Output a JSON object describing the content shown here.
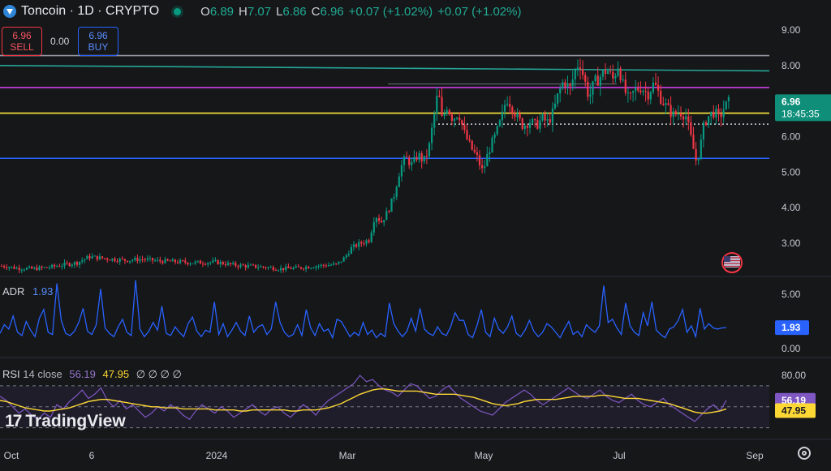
{
  "header": {
    "symbol": "Toncoin · 1D · CRYPTO",
    "open_label": "O",
    "open": "6.89",
    "high_label": "H",
    "high": "7.07",
    "low_label": "L",
    "low": "6.86",
    "close_label": "C",
    "close": "6.96",
    "change": "+0.07 (+1.02%)",
    "change2": "+0.07 (+1.02%)"
  },
  "trade": {
    "sell_price": "6.96",
    "sell_label": "SELL",
    "spread": "0.00",
    "buy_price": "6.96",
    "buy_label": "BUY"
  },
  "adr_label": {
    "name": "ADR",
    "value": "1.93"
  },
  "rsi_label": {
    "name": "RSI",
    "params": "14 close",
    "value": "56.19",
    "ma_value": "47.95",
    "extra": "∅ ∅ ∅ ∅"
  },
  "watermark": {
    "text": "TradingView"
  },
  "colors": {
    "up": "#089981",
    "down": "#f23645",
    "adr": "#2962ff",
    "rsi": "#7e57c2",
    "rsi_ma": "#fdd835"
  },
  "icons": {
    "settings": "gear-icon",
    "flag": "us-flag-icon"
  },
  "chart_data": [
    {
      "type": "candlestick",
      "title": "Toncoin · 1D · CRYPTO",
      "x_ticks": [
        "Oct",
        "6",
        "2024",
        "Mar",
        "May",
        "Jul",
        "Sep"
      ],
      "y_ticks": [
        "9.00",
        "8.00",
        "7.00",
        "6.00",
        "5.00",
        "4.00",
        "3.00"
      ],
      "ylim": [
        2.2,
        9.3
      ],
      "last_price": "6.96",
      "countdown": "18:45:35",
      "horizontal_lines": [
        {
          "value": 8.28,
          "color": "#9598a1"
        },
        {
          "value": 8.0,
          "value_end": 7.85,
          "color": "#26a69a"
        },
        {
          "value": 7.38,
          "color": "#e040fb"
        },
        {
          "value": 6.66,
          "color": "#ffeb3b"
        },
        {
          "value": 6.35,
          "color": "#d1d4dc",
          "style": "dotted"
        },
        {
          "value": 5.39,
          "color": "#2962ff"
        }
      ],
      "close_path": [
        [
          0,
          2.36
        ],
        [
          8,
          2.35
        ],
        [
          20,
          2.3
        ],
        [
          40,
          2.28
        ],
        [
          60,
          2.32
        ],
        [
          80,
          2.4
        ],
        [
          95,
          2.45
        ],
        [
          110,
          2.62
        ],
        [
          125,
          2.58
        ],
        [
          140,
          2.55
        ],
        [
          155,
          2.52
        ],
        [
          175,
          2.55
        ],
        [
          195,
          2.5
        ],
        [
          215,
          2.48
        ],
        [
          240,
          2.45
        ],
        [
          265,
          2.47
        ],
        [
          290,
          2.38
        ],
        [
          310,
          2.35
        ],
        [
          330,
          2.32
        ],
        [
          345,
          2.28
        ],
        [
          365,
          2.3
        ],
        [
          385,
          2.35
        ],
        [
          400,
          2.38
        ],
        [
          415,
          2.4
        ],
        [
          425,
          2.6
        ],
        [
          432,
          2.85
        ],
        [
          440,
          2.95
        ],
        [
          455,
          3.1
        ],
        [
          462,
          3.8
        ],
        [
          470,
          3.6
        ],
        [
          478,
          3.9
        ],
        [
          485,
          4.3
        ],
        [
          493,
          5.1
        ],
        [
          500,
          5.4
        ],
        [
          508,
          5.2
        ],
        [
          515,
          5.5
        ],
        [
          522,
          5.3
        ],
        [
          528,
          5.6
        ],
        [
          535,
          6.6
        ],
        [
          540,
          7.3
        ],
        [
          545,
          6.4
        ],
        [
          550,
          6.9
        ],
        [
          558,
          6.5
        ],
        [
          565,
          6.7
        ],
        [
          572,
          6.1
        ],
        [
          580,
          5.7
        ],
        [
          588,
          5.4
        ],
        [
          595,
          5.0
        ],
        [
          602,
          5.6
        ],
        [
          610,
          6.0
        ],
        [
          618,
          6.5
        ],
        [
          624,
          7.1
        ],
        [
          630,
          6.9
        ],
        [
          638,
          6.5
        ],
        [
          645,
          6.3
        ],
        [
          652,
          6.45
        ],
        [
          660,
          6.3
        ],
        [
          668,
          6.5
        ],
        [
          675,
          6.4
        ],
        [
          682,
          6.7
        ],
        [
          688,
          7.2
        ],
        [
          695,
          7.6
        ],
        [
          702,
          7.3
        ],
        [
          708,
          7.8
        ],
        [
          714,
          8.15
        ],
        [
          720,
          7.6
        ],
        [
          726,
          7.1
        ],
        [
          732,
          7.5
        ],
        [
          740,
          7.7
        ],
        [
          748,
          7.9
        ],
        [
          755,
          7.6
        ],
        [
          762,
          8.05
        ],
        [
          768,
          7.4
        ],
        [
          775,
          7.0
        ],
        [
          782,
          7.3
        ],
        [
          790,
          7.4
        ],
        [
          798,
          7.2
        ],
        [
          806,
          7.5
        ],
        [
          814,
          7.1
        ],
        [
          822,
          6.8
        ],
        [
          830,
          6.6
        ],
        [
          838,
          6.7
        ],
        [
          845,
          6.6
        ],
        [
          852,
          5.9
        ],
        [
          858,
          5.3
        ],
        [
          862,
          5.6
        ],
        [
          868,
          6.4
        ],
        [
          874,
          6.6
        ],
        [
          880,
          6.7
        ],
        [
          886,
          6.5
        ],
        [
          892,
          6.8
        ],
        [
          898,
          6.96
        ]
      ]
    },
    {
      "type": "line",
      "title": "ADR",
      "y_ticks": [
        "5.00",
        "0.00"
      ],
      "ylim": [
        -0.4,
        6.3
      ],
      "last_value": "1.93",
      "series": [
        {
          "values": [
            1.4,
            2.2,
            1.8,
            3.0,
            1.5,
            1.2,
            2.5,
            1.7,
            1.1,
            2.8,
            3.6,
            1.5,
            1.3,
            6.0,
            2.6,
            1.4,
            1.2,
            1.6,
            2.4,
            3.7,
            1.6,
            1.3,
            2.2,
            5.5,
            1.9,
            1.4,
            1.1,
            2.0,
            2.7,
            1.5,
            1.2,
            6.3,
            1.8,
            1.1,
            1.6,
            2.4,
            1.7,
            3.9,
            1.4,
            1.2,
            2.0,
            1.5,
            1.1,
            2.3,
            2.9,
            1.6,
            1.1,
            1.7,
            1.5,
            4.3,
            1.3,
            2.3,
            1.1,
            1.7,
            2.4,
            1.6,
            1.2,
            3.0,
            1.5,
            2.0,
            2.2,
            1.3,
            1.8,
            4.3,
            2.4,
            1.5,
            1.1,
            1.3,
            2.2,
            1.2,
            3.6,
            1.9,
            1.2,
            2.3,
            1.6,
            1.8,
            1.0,
            2.7,
            2.5,
            1.8,
            1.1,
            1.5,
            1.2,
            2.4,
            1.3,
            1.7,
            1.0,
            1.4,
            1.1,
            4.2,
            2.3,
            1.6,
            1.1,
            1.6,
            2.8,
            1.6,
            3.7,
            1.8,
            1.4,
            1.2,
            2.0,
            1.4,
            1.2,
            2.0,
            3.3,
            2.6,
            2.6,
            1.3,
            1.0,
            2.1,
            3.6,
            1.5,
            1.1,
            2.8,
            1.8,
            1.4,
            2.0,
            3.0,
            1.4,
            1.1,
            1.7,
            2.6,
            1.6,
            1.1,
            1.5,
            2.3,
            2.0,
            1.5,
            1.0,
            1.8,
            2.5,
            1.3,
            1.6,
            1.1,
            2.2,
            1.8,
            1.5,
            2.1,
            5.8,
            2.4,
            2.7,
            1.9,
            1.3,
            4.2,
            2.1,
            1.5,
            1.2,
            3.3,
            2.1,
            4.3,
            1.7,
            1.3,
            1.0,
            1.8,
            2.0,
            2.6,
            3.6,
            1.5,
            2.1,
            1.1,
            3.7,
            1.8,
            2.3,
            1.9,
            1.8,
            1.9,
            1.93
          ]
        }
      ]
    },
    {
      "type": "line",
      "title": "RSI 14 close",
      "y_ticks": [
        "80.00"
      ],
      "ylim": [
        20,
        88
      ],
      "bands": [
        70,
        50,
        30
      ],
      "series": [
        {
          "name": "RSI",
          "value_label": "56.19",
          "values": [
            60,
            56,
            50,
            44,
            48,
            42,
            38,
            44,
            40,
            52,
            48,
            55,
            60,
            66,
            58,
            62,
            68,
            56,
            50,
            56,
            48,
            52,
            46,
            40,
            44,
            50,
            46,
            52,
            48,
            42,
            38,
            46,
            52,
            48,
            44,
            50,
            46,
            40,
            44,
            48,
            52,
            46,
            42,
            48,
            50,
            44,
            40,
            46,
            52,
            48,
            42,
            50,
            56,
            60,
            64,
            68,
            72,
            80,
            74,
            76,
            70,
            66,
            64,
            60,
            66,
            72,
            70,
            64,
            58,
            60,
            66,
            70,
            64,
            58,
            54,
            50,
            46,
            44,
            42,
            48,
            54,
            58,
            62,
            66,
            62,
            56,
            52,
            56,
            60,
            64,
            68,
            64,
            60,
            58,
            62,
            66,
            60,
            56,
            54,
            58,
            62,
            56,
            52,
            50,
            54,
            58,
            52,
            48,
            44,
            40,
            36,
            42,
            48,
            52,
            46,
            56.19
          ]
        },
        {
          "name": "MA",
          "value_label": "47.95",
          "values": [
            56,
            55,
            53,
            51,
            49,
            48,
            47,
            46,
            46,
            47,
            48,
            49,
            51,
            53,
            55,
            56,
            57,
            57,
            56,
            55,
            54,
            53,
            52,
            51,
            50,
            50,
            49,
            49,
            49,
            48,
            48,
            48,
            48,
            48,
            47,
            47,
            47,
            47,
            46,
            46,
            47,
            47,
            47,
            47,
            47,
            47,
            46,
            46,
            47,
            47,
            47,
            48,
            49,
            51,
            53,
            56,
            59,
            62,
            64,
            66,
            67,
            67,
            66,
            65,
            65,
            65,
            65,
            64,
            63,
            62,
            62,
            62,
            62,
            61,
            60,
            59,
            57,
            55,
            53,
            52,
            51,
            52,
            53,
            55,
            56,
            57,
            57,
            57,
            57,
            58,
            59,
            60,
            60,
            60,
            60,
            61,
            61,
            60,
            59,
            58,
            58,
            58,
            57,
            56,
            55,
            54,
            53,
            51,
            49,
            47,
            45,
            44,
            44,
            45,
            46,
            47.95
          ]
        }
      ]
    }
  ]
}
